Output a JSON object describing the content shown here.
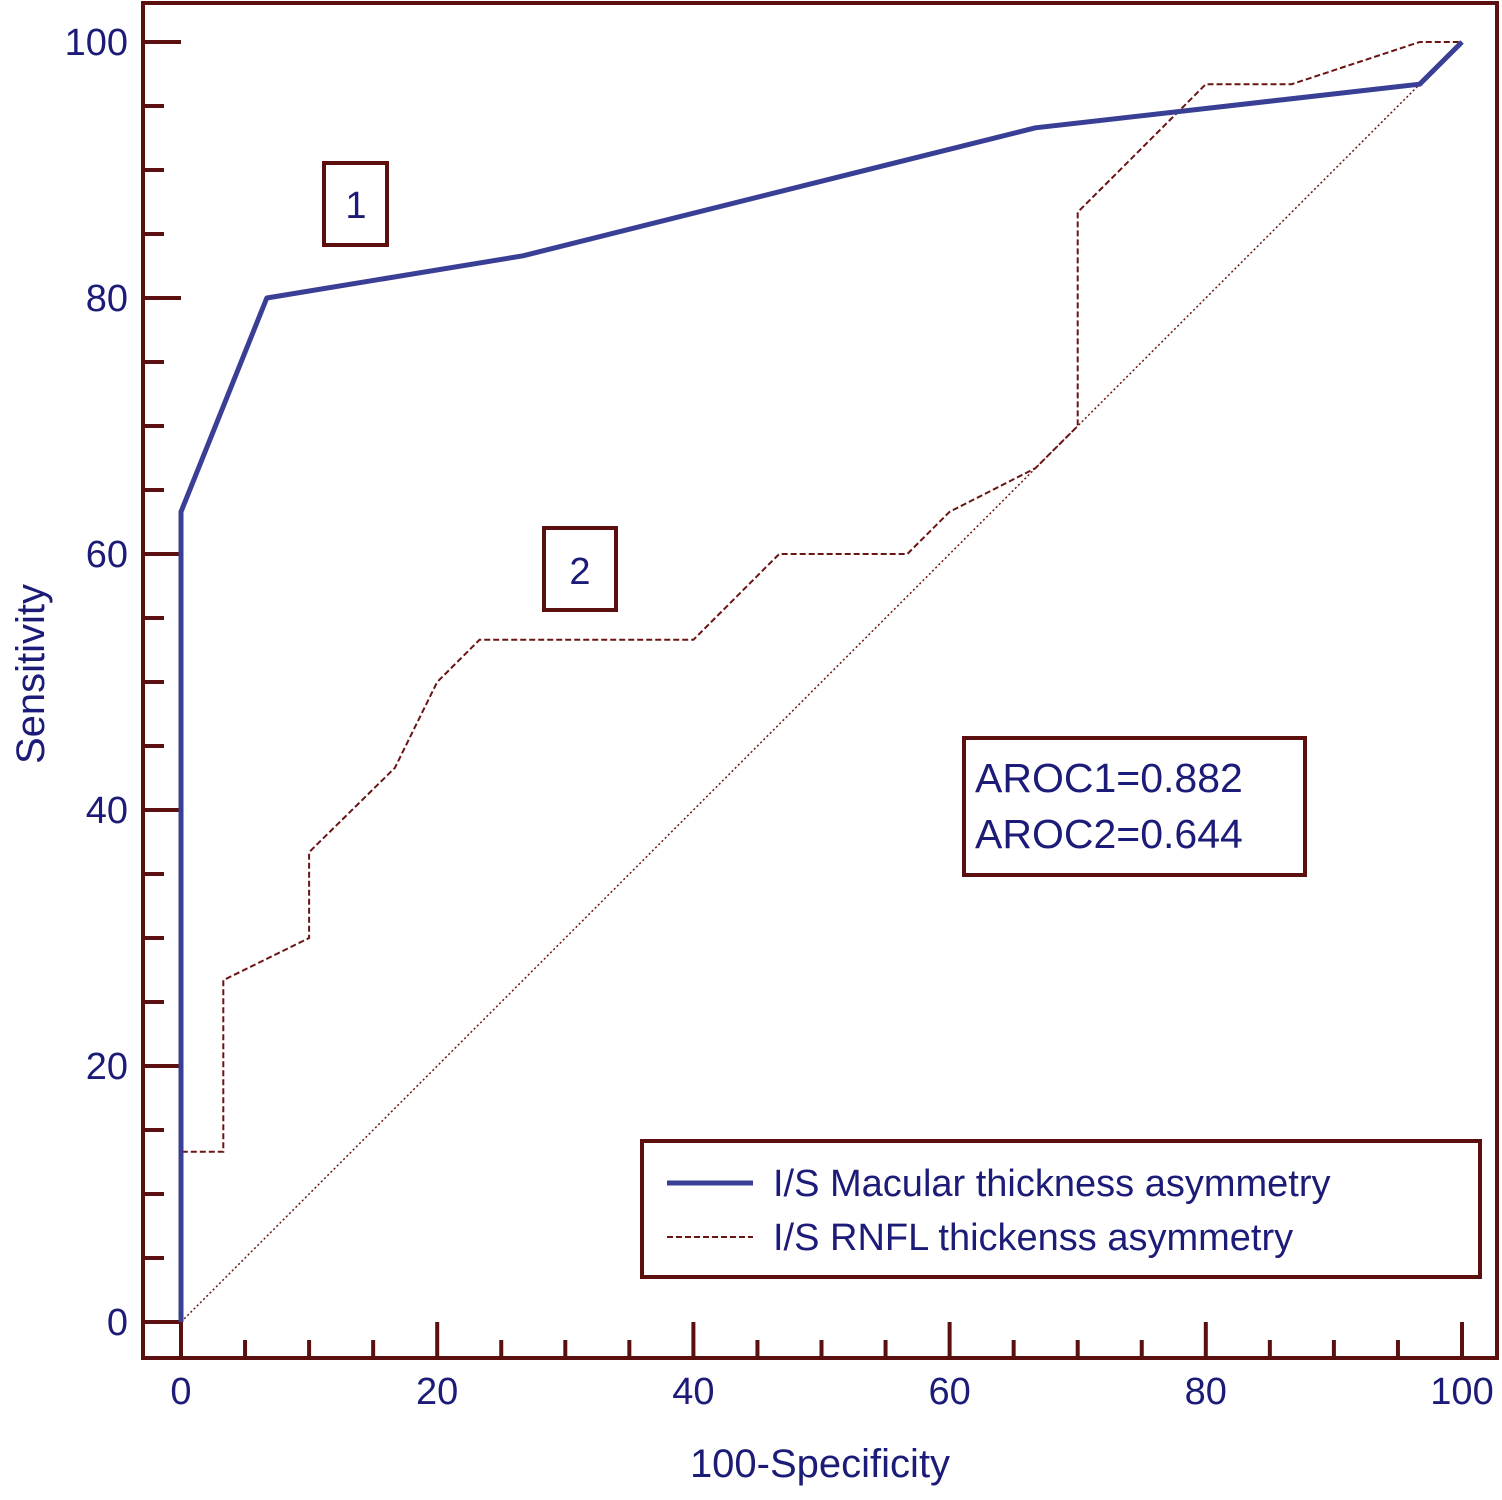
{
  "chart_data": {
    "type": "line",
    "title": "",
    "xlabel": "100-Specificity",
    "ylabel": "Sensitivity",
    "xlim": [
      -3,
      103
    ],
    "ylim": [
      -3,
      103
    ],
    "x_ticks": [
      0,
      20,
      40,
      60,
      80,
      100
    ],
    "y_ticks": [
      0,
      20,
      40,
      60,
      80,
      100
    ],
    "minor_tick_step": 5,
    "grid": false,
    "legend_position": "bottom-right",
    "colors": {
      "frame": "#5c0f0f",
      "text": "#1c1c78",
      "series1": "#3a3f96",
      "series2": "#6b1414",
      "diagonal": "#6b1414"
    },
    "series": [
      {
        "name": "I/S Macular thickness asymmetry",
        "style": "solid",
        "label": "1",
        "x": [
          0,
          0,
          6.7,
          26.7,
          66.7,
          96.7,
          100
        ],
        "y": [
          0,
          63.3,
          80,
          83.3,
          93.3,
          96.7,
          100
        ]
      },
      {
        "name": "I/S RNFL thickenss asymmetry",
        "style": "dashed",
        "label": "2",
        "x": [
          0,
          0,
          3.3,
          3.3,
          10,
          10,
          16.7,
          20,
          23.3,
          40,
          46.7,
          56.7,
          60,
          66.7,
          70,
          70,
          80,
          86.7,
          96.7,
          100
        ],
        "y": [
          0,
          13.3,
          13.3,
          26.7,
          30,
          36.7,
          43.3,
          50,
          53.3,
          53.3,
          60,
          60,
          63.3,
          66.7,
          70,
          86.7,
          96.7,
          96.7,
          100,
          100
        ]
      }
    ],
    "reference_line": {
      "style": "dotted",
      "x": [
        0,
        100
      ],
      "y": [
        0,
        100
      ]
    },
    "annotations": {
      "curve1_label": "1",
      "curve2_label": "2",
      "aroc1": "AROC1=0.882",
      "aroc2": "AROC2=0.644"
    }
  }
}
